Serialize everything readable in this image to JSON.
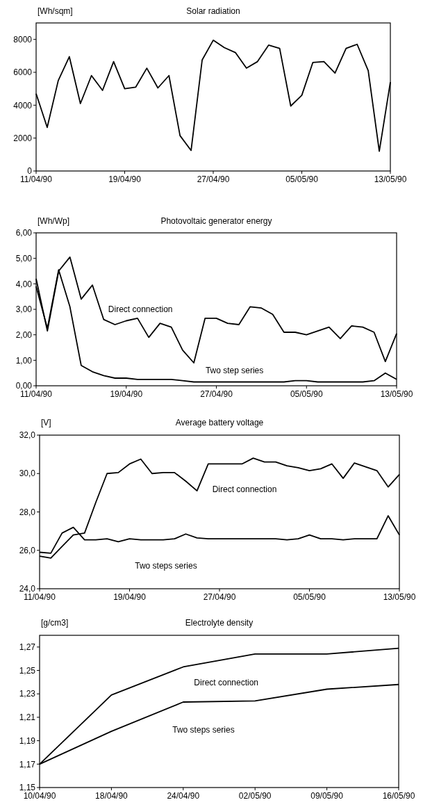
{
  "chart_data": [
    {
      "type": "line",
      "title": "Solar radiation",
      "ylabel": "[Wh/sqm]",
      "x": [
        "1990-04-11",
        "1990-04-12",
        "1990-04-13",
        "1990-04-14",
        "1990-04-15",
        "1990-04-16",
        "1990-04-17",
        "1990-04-18",
        "1990-04-19",
        "1990-04-20",
        "1990-04-21",
        "1990-04-22",
        "1990-04-23",
        "1990-04-24",
        "1990-04-25",
        "1990-04-26",
        "1990-04-27",
        "1990-04-28",
        "1990-04-29",
        "1990-04-30",
        "1990-05-01",
        "1990-05-02",
        "1990-05-03",
        "1990-05-04",
        "1990-05-05",
        "1990-05-06",
        "1990-05-07",
        "1990-05-08",
        "1990-05-09",
        "1990-05-10",
        "1990-05-11",
        "1990-05-12",
        "1990-05-13"
      ],
      "series": [
        {
          "color": "#000000",
          "values": [
            4700,
            2650,
            5500,
            6950,
            4100,
            5800,
            4900,
            6650,
            5000,
            5100,
            6250,
            5050,
            5800,
            2150,
            1250,
            6750,
            7950,
            7500,
            7200,
            6250,
            6650,
            7650,
            7450,
            3950,
            4600,
            6600,
            6650,
            5950,
            7450,
            7700,
            6100,
            1200,
            5400
          ]
        }
      ],
      "ylim": [
        0,
        9000
      ],
      "yticks": [
        0,
        2000,
        4000,
        6000,
        8000
      ],
      "xlim": [
        "1990-04-11",
        "1990-05-13"
      ],
      "xticks": [
        {
          "value": "1990-04-11",
          "label": "11/04/90"
        },
        {
          "value": "1990-04-19",
          "label": "19/04/90"
        },
        {
          "value": "1990-04-27",
          "label": "27/04/90"
        },
        {
          "value": "1990-05-05",
          "label": "05/05/90"
        },
        {
          "value": "1990-05-13",
          "label": "13/05/90"
        }
      ],
      "grid": false
    },
    {
      "type": "line",
      "title": "Photovoltaic generator energy",
      "ylabel": "[Wh/Wp]",
      "x": [
        "1990-04-11",
        "1990-04-12",
        "1990-04-13",
        "1990-04-14",
        "1990-04-15",
        "1990-04-16",
        "1990-04-17",
        "1990-04-18",
        "1990-04-19",
        "1990-04-20",
        "1990-04-21",
        "1990-04-22",
        "1990-04-23",
        "1990-04-24",
        "1990-04-25",
        "1990-04-26",
        "1990-04-27",
        "1990-04-28",
        "1990-04-29",
        "1990-04-30",
        "1990-05-01",
        "1990-05-02",
        "1990-05-03",
        "1990-05-04",
        "1990-05-05",
        "1990-05-06",
        "1990-05-07",
        "1990-05-08",
        "1990-05-09",
        "1990-05-10",
        "1990-05-11",
        "1990-05-12",
        "1990-05-13"
      ],
      "series": [
        {
          "name": "Direct connection",
          "color": "#000000",
          "values": [
            4.2,
            2.15,
            4.5,
            5.05,
            3.4,
            3.95,
            2.6,
            2.4,
            2.55,
            2.65,
            1.9,
            2.45,
            2.3,
            1.4,
            0.9,
            2.65,
            2.65,
            2.45,
            2.4,
            3.1,
            3.05,
            2.8,
            2.1,
            2.1,
            2.0,
            2.15,
            2.3,
            1.85,
            2.35,
            2.3,
            2.1,
            0.95,
            2.05
          ]
        },
        {
          "name": "Two step series",
          "color": "#000000",
          "values": [
            3.9,
            2.25,
            4.55,
            3.1,
            0.8,
            0.55,
            0.4,
            0.3,
            0.3,
            0.25,
            0.25,
            0.25,
            0.25,
            0.2,
            0.15,
            0.15,
            0.15,
            0.15,
            0.15,
            0.15,
            0.15,
            0.15,
            0.15,
            0.2,
            0.2,
            0.15,
            0.15,
            0.15,
            0.15,
            0.15,
            0.2,
            0.5,
            0.25
          ]
        }
      ],
      "ylim": [
        0,
        6
      ],
      "yticks": [
        {
          "value": 0,
          "label": "0,00"
        },
        {
          "value": 1,
          "label": "1,00"
        },
        {
          "value": 2,
          "label": "2,00"
        },
        {
          "value": 3,
          "label": "3,00"
        },
        {
          "value": 4,
          "label": "4,00"
        },
        {
          "value": 5,
          "label": "5,00"
        },
        {
          "value": 6,
          "label": "6,00"
        }
      ],
      "xlim": [
        "1990-04-11",
        "1990-05-13"
      ],
      "xticks": [
        {
          "value": "1990-04-11",
          "label": "11/04/90"
        },
        {
          "value": "1990-04-19",
          "label": "19/04/90"
        },
        {
          "value": "1990-04-27",
          "label": "27/04/90"
        },
        {
          "value": "1990-05-05",
          "label": "05/05/90"
        },
        {
          "value": "1990-05-13",
          "label": "13/05/90"
        }
      ],
      "grid": false
    },
    {
      "type": "line",
      "title": "Average battery voltage",
      "ylabel": "[V]",
      "x": [
        "1990-04-11",
        "1990-04-12",
        "1990-04-13",
        "1990-04-14",
        "1990-04-15",
        "1990-04-16",
        "1990-04-17",
        "1990-04-18",
        "1990-04-19",
        "1990-04-20",
        "1990-04-21",
        "1990-04-22",
        "1990-04-23",
        "1990-04-24",
        "1990-04-25",
        "1990-04-26",
        "1990-04-27",
        "1990-04-28",
        "1990-04-29",
        "1990-04-30",
        "1990-05-01",
        "1990-05-02",
        "1990-05-03",
        "1990-05-04",
        "1990-05-05",
        "1990-05-06",
        "1990-05-07",
        "1990-05-08",
        "1990-05-09",
        "1990-05-10",
        "1990-05-11",
        "1990-05-12",
        "1990-05-13"
      ],
      "series": [
        {
          "name": "Direct connection",
          "color": "#000000",
          "values": [
            25.7,
            25.6,
            26.2,
            26.8,
            26.9,
            28.5,
            30.0,
            30.05,
            30.5,
            30.75,
            30.0,
            30.05,
            30.05,
            29.6,
            29.1,
            30.5,
            30.5,
            30.5,
            30.5,
            30.8,
            30.6,
            30.6,
            30.4,
            30.3,
            30.15,
            30.25,
            30.5,
            29.75,
            30.55,
            30.35,
            30.15,
            29.3,
            29.95
          ]
        },
        {
          "name": "Two steps series",
          "color": "#000000",
          "values": [
            25.9,
            25.85,
            26.9,
            27.2,
            26.55,
            26.55,
            26.6,
            26.45,
            26.6,
            26.55,
            26.55,
            26.55,
            26.6,
            26.85,
            26.65,
            26.6,
            26.6,
            26.6,
            26.6,
            26.6,
            26.6,
            26.6,
            26.55,
            26.6,
            26.8,
            26.6,
            26.6,
            26.55,
            26.6,
            26.6,
            26.6,
            27.8,
            26.8
          ]
        }
      ],
      "ylim": [
        24,
        32
      ],
      "yticks": [
        {
          "value": 24,
          "label": "24,0"
        },
        {
          "value": 26,
          "label": "26,0"
        },
        {
          "value": 28,
          "label": "28,0"
        },
        {
          "value": 30,
          "label": "30,0"
        },
        {
          "value": 32,
          "label": "32,0"
        }
      ],
      "xlim": [
        "1990-04-11",
        "1990-05-13"
      ],
      "xticks": [
        {
          "value": "1990-04-11",
          "label": "11/04/90"
        },
        {
          "value": "1990-04-19",
          "label": "19/04/90"
        },
        {
          "value": "1990-04-27",
          "label": "27/04/90"
        },
        {
          "value": "1990-05-05",
          "label": "05/05/90"
        },
        {
          "value": "1990-05-13",
          "label": "13/05/90"
        }
      ],
      "grid": false
    },
    {
      "type": "line",
      "title": "Electrolyte density",
      "ylabel": "[g/cm3]",
      "categories": [
        "10/04/90",
        "18/04/90",
        "24/04/90",
        "02/05/90",
        "09/05/90",
        "16/05/90"
      ],
      "series": [
        {
          "name": "Direct connection",
          "color": "#000000",
          "values": [
            1.17,
            1.229,
            1.253,
            1.264,
            1.264,
            1.269
          ]
        },
        {
          "name": "Two steps series",
          "color": "#000000",
          "values": [
            1.17,
            1.198,
            1.223,
            1.224,
            1.234,
            1.238
          ]
        }
      ],
      "ylim": [
        1.15,
        1.28
      ],
      "yticks": [
        {
          "value": 1.15,
          "label": "1,15"
        },
        {
          "value": 1.17,
          "label": "1,17"
        },
        {
          "value": 1.19,
          "label": "1,19"
        },
        {
          "value": 1.21,
          "label": "1,21"
        },
        {
          "value": 1.23,
          "label": "1,23"
        },
        {
          "value": 1.25,
          "label": "1,25"
        },
        {
          "value": 1.27,
          "label": "1,27"
        }
      ],
      "grid": false
    }
  ]
}
